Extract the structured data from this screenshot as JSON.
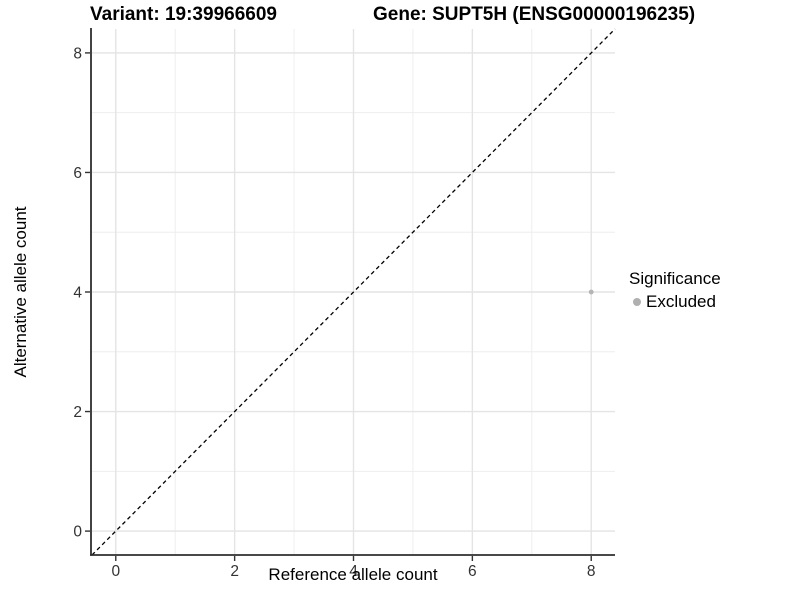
{
  "figure": {
    "background": "#ffffff"
  },
  "chart_data": {
    "type": "scatter",
    "titles": {
      "left": "Variant: 19:39966609",
      "right": "Gene: SUPT5H (ENSG00000196235)"
    },
    "xlabel": "Reference allele count",
    "ylabel": "Alternative allele count",
    "xlim": [
      -0.4,
      8.4
    ],
    "ylim": [
      -0.4,
      8.4
    ],
    "xticks": [
      0,
      2,
      4,
      6,
      8
    ],
    "yticks": [
      0,
      2,
      4,
      6,
      8
    ],
    "xticks_minor": [
      1,
      3,
      5,
      7
    ],
    "yticks_minor": [
      1,
      3,
      5,
      7
    ],
    "grid": "on",
    "reference_line": {
      "type": "identity y=x",
      "style": "dashed",
      "color": "#000000"
    },
    "series": [
      {
        "name": "Excluded",
        "color": "#b5b5b5",
        "marker": "circle",
        "points": [
          [
            8,
            4
          ]
        ]
      }
    ],
    "legend": {
      "position": "right",
      "title": "Significance",
      "entries": [
        {
          "label": "Excluded",
          "color": "#b0b0b0",
          "marker": "circle"
        }
      ]
    },
    "style": {
      "grid_major_color": "#e4e4e4",
      "grid_minor_color": "#eeeeee",
      "axis_line_color": "#2e2e2e",
      "tick_mark_color": "#333333",
      "tick_label_color": "#333333"
    }
  }
}
